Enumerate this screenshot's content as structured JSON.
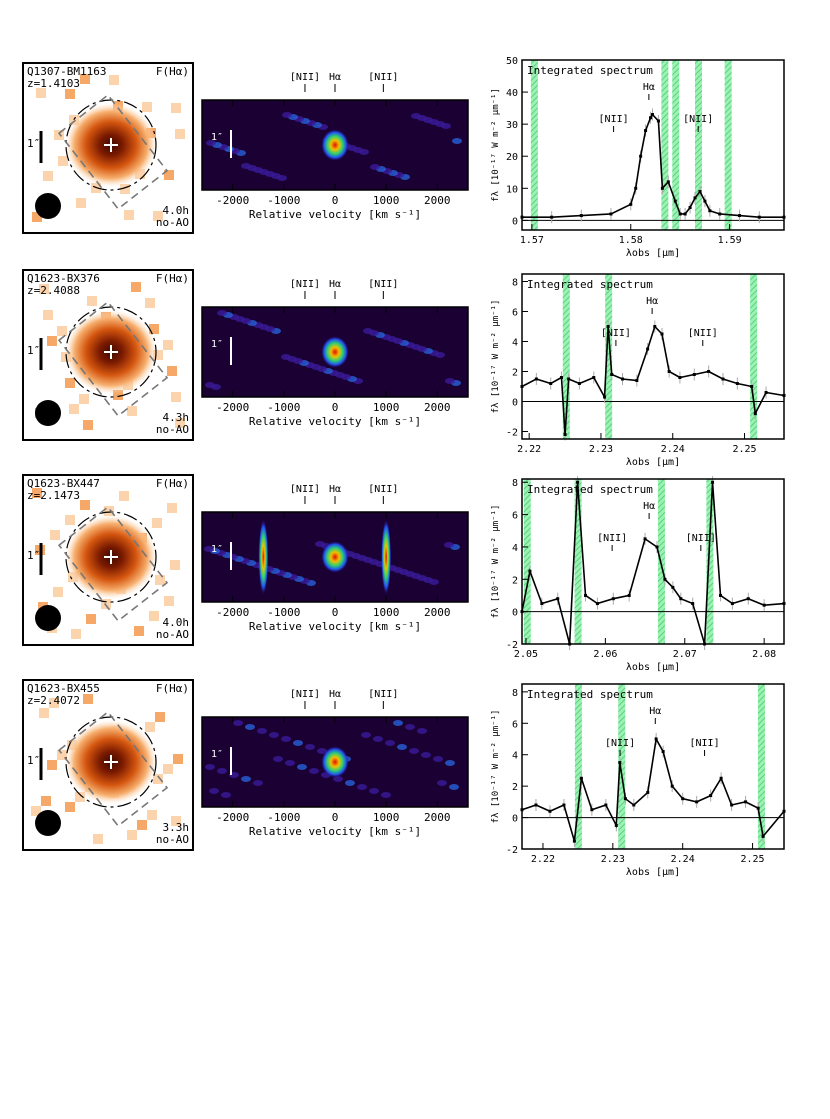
{
  "figure": {
    "rows": [
      {
        "name": "Q1307-BM1163",
        "z_label": "z=1.4103",
        "map_label": "F(Hα)",
        "exposure": "4.0h",
        "mode": "no-AO",
        "scale_label": "1″",
        "spec_label": "Integrated spectrum",
        "nii_left_label": "[NII]",
        "halpha_label": "Hα",
        "nii_right_label": "[NII]",
        "xticks": [
          "1.57",
          "1.58",
          "1.59"
        ],
        "yticks": [
          "50",
          "40",
          "30",
          "20",
          "10",
          "0"
        ],
        "y_label": "fλ [10⁻¹⁷ W m⁻² μm⁻¹]",
        "x_label": "λobs [μm]"
      },
      {
        "name": "Q1623-BX376",
        "z_label": "z=2.4088",
        "map_label": "F(Hα)",
        "exposure": "4.3h",
        "mode": "no-AO",
        "scale_label": "1″",
        "spec_label": "Integrated spectrum",
        "nii_left_label": "[NII]",
        "halpha_label": "Hα",
        "nii_right_label": "[NII]",
        "xticks": [
          "2.22",
          "2.23",
          "2.24",
          "2.25"
        ],
        "yticks": [
          "8",
          "6",
          "4",
          "2",
          "0",
          "-2"
        ],
        "y_label": "fλ [10⁻¹⁷ W m⁻² μm⁻¹]",
        "x_label": "λobs [μm]"
      },
      {
        "name": "Q1623-BX447",
        "z_label": "z=2.1473",
        "map_label": "F(Hα)",
        "exposure": "4.0h",
        "mode": "no-AO",
        "scale_label": "1″",
        "spec_label": "Integrated spectrum",
        "nii_left_label": "[NII]",
        "halpha_label": "Hα",
        "nii_right_label": "[NII]",
        "xticks": [
          "2.05",
          "2.06",
          "2.07",
          "2.08"
        ],
        "yticks": [
          "8",
          "6",
          "4",
          "2",
          "0",
          "-2"
        ],
        "y_label": "fλ [10⁻¹⁷ W m⁻² μm⁻¹]",
        "x_label": "λobs [μm]"
      },
      {
        "name": "Q1623-BX455",
        "z_label": "z=2.4072",
        "map_label": "F(Hα)",
        "exposure": "3.3h",
        "mode": "no-AO",
        "scale_label": "1″",
        "spec_label": "Integrated spectrum",
        "nii_left_label": "[NII]",
        "halpha_label": "Hα",
        "nii_right_label": "[NII]",
        "xticks": [
          "2.22",
          "2.23",
          "2.24",
          "2.25"
        ],
        "yticks": [
          "8",
          "6",
          "4",
          "2",
          "0",
          "-2"
        ],
        "y_label": "fλ [10⁻¹⁷ W m⁻² μm⁻¹]",
        "x_label": "λobs [μm]"
      }
    ],
    "velocity_axis": {
      "xticks": [
        "-2000",
        "-1000",
        "0",
        "1000",
        "2000"
      ],
      "x_label": "Relative velocity [km s⁻¹]",
      "line_nii_left": "[NII]",
      "line_halpha": "Hα",
      "line_nii_right": "[NII]"
    }
  },
  "chart_data": [
    {
      "type": "line",
      "title": "Q1307-BM1163 integrated spectrum",
      "xlabel": "λobs [μm]",
      "ylabel": "fλ [10⁻¹⁷ W m⁻² μm⁻¹]",
      "xlim": [
        1.569,
        1.5955
      ],
      "ylim": [
        -3,
        50
      ],
      "x": [
        1.569,
        1.572,
        1.575,
        1.578,
        1.58,
        1.5805,
        1.581,
        1.5815,
        1.582,
        1.5822,
        1.5828,
        1.5832,
        1.5838,
        1.5845,
        1.585,
        1.5855,
        1.586,
        1.5865,
        1.587,
        1.5875,
        1.588,
        1.589,
        1.591,
        1.593,
        1.5955
      ],
      "series": [
        {
          "name": "spectrum",
          "values": [
            1,
            1,
            1.5,
            2,
            5,
            10,
            20,
            28,
            32,
            33,
            31,
            10,
            12,
            6,
            2,
            2,
            4,
            7,
            9,
            6,
            3,
            2,
            1.5,
            1,
            1
          ]
        }
      ],
      "sky_bands_um": [
        1.5702,
        1.5834,
        1.5845,
        1.5868,
        1.5898
      ]
    },
    {
      "type": "line",
      "title": "Q1623-BX376 integrated spectrum",
      "xlabel": "λobs [μm]",
      "ylabel": "fλ [10⁻¹⁷ W m⁻² μm⁻¹]",
      "xlim": [
        2.219,
        2.2555
      ],
      "ylim": [
        -2.5,
        8.5
      ],
      "x": [
        2.219,
        2.221,
        2.223,
        2.2245,
        2.225,
        2.2255,
        2.227,
        2.229,
        2.2305,
        2.231,
        2.2315,
        2.233,
        2.235,
        2.2365,
        2.2375,
        2.2385,
        2.2395,
        2.241,
        2.243,
        2.245,
        2.247,
        2.249,
        2.251,
        2.2515,
        2.253,
        2.2555
      ],
      "series": [
        {
          "name": "spectrum",
          "values": [
            1,
            1.5,
            1.2,
            1.6,
            -2.2,
            1.5,
            1.2,
            1.6,
            0.3,
            5,
            1.8,
            1.5,
            1.4,
            3.5,
            5,
            4.5,
            2,
            1.6,
            1.8,
            2,
            1.5,
            1.2,
            1,
            -0.8,
            0.6,
            0.4
          ]
        }
      ],
      "sky_bands_um": [
        2.2251,
        2.231,
        2.2512
      ]
    },
    {
      "type": "line",
      "title": "Q1623-BX447 integrated spectrum",
      "xlabel": "λobs [μm]",
      "ylabel": "fλ [10⁻¹⁷ W m⁻² μm⁻¹]",
      "xlim": [
        2.0495,
        2.0825
      ],
      "ylim": [
        -2,
        8.2
      ],
      "x": [
        2.0495,
        2.0505,
        2.052,
        2.054,
        2.0555,
        2.0565,
        2.0575,
        2.059,
        2.061,
        2.063,
        2.065,
        2.0665,
        2.0675,
        2.0685,
        2.0695,
        2.071,
        2.0725,
        2.0735,
        2.0745,
        2.076,
        2.078,
        2.08,
        2.0825
      ],
      "series": [
        {
          "name": "spectrum",
          "values": [
            0,
            2.5,
            0.5,
            0.8,
            -2,
            8,
            1,
            0.5,
            0.8,
            1,
            4.5,
            4,
            2,
            1.5,
            0.8,
            0.5,
            -2,
            8,
            1,
            0.5,
            0.8,
            0.4,
            0.5
          ]
        }
      ],
      "sky_bands_um": [
        2.0501,
        2.0565,
        2.067,
        2.0731
      ]
    },
    {
      "type": "line",
      "title": "Q1623-BX455 integrated spectrum",
      "xlabel": "λobs [μm]",
      "ylabel": "fλ [10⁻¹⁷ W m⁻² μm⁻¹]",
      "xlim": [
        2.217,
        2.2545
      ],
      "ylim": [
        -2,
        8.5
      ],
      "x": [
        2.217,
        2.219,
        2.221,
        2.223,
        2.2245,
        2.2255,
        2.227,
        2.229,
        2.2305,
        2.231,
        2.2318,
        2.233,
        2.235,
        2.2362,
        2.2372,
        2.2385,
        2.24,
        2.242,
        2.244,
        2.2455,
        2.247,
        2.249,
        2.2508,
        2.2515,
        2.2545
      ],
      "series": [
        {
          "name": "spectrum",
          "values": [
            0.5,
            0.8,
            0.4,
            0.8,
            -1.5,
            2.5,
            0.5,
            0.8,
            -0.5,
            3.5,
            1.2,
            0.8,
            1.6,
            5,
            4.2,
            2,
            1.2,
            1,
            1.4,
            2.5,
            0.8,
            1,
            0.6,
            -1.2,
            0.4
          ]
        }
      ],
      "sky_bands_um": [
        2.225,
        2.2312,
        2.2512
      ]
    }
  ]
}
